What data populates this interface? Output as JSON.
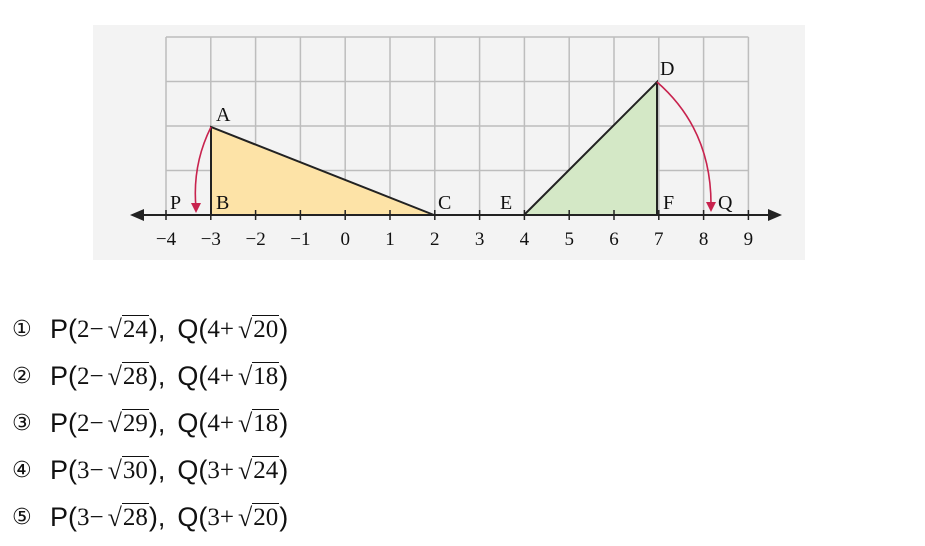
{
  "figure": {
    "ticks": [
      "−4",
      "−3",
      "−2",
      "−1",
      "0",
      "1",
      "2",
      "3",
      "4",
      "5",
      "6",
      "7",
      "8",
      "9"
    ],
    "labels": {
      "P": "P",
      "A": "A",
      "B": "B",
      "C": "C",
      "D": "D",
      "E": "E",
      "F": "F",
      "Q": "Q"
    },
    "colors": {
      "triangle_left": "#fde3a7",
      "triangle_right": "#d4e8c6",
      "arc": "#c8234e",
      "grid": "#bdbdbd",
      "panel": "#f3f3f3"
    }
  },
  "options": [
    {
      "num": "①",
      "p_prefix": "P(",
      "p_int": "2",
      "p_op": " − ",
      "p_rad": "24",
      "sep": "),",
      "q_prefix": "Q(",
      "q_int": "4",
      "q_op": " + ",
      "q_rad": "20",
      "end": ")"
    },
    {
      "num": "②",
      "p_prefix": "P(",
      "p_int": "2",
      "p_op": " − ",
      "p_rad": "28",
      "sep": "),",
      "q_prefix": "Q(",
      "q_int": "4",
      "q_op": " + ",
      "q_rad": "18",
      "end": ")"
    },
    {
      "num": "③",
      "p_prefix": "P(",
      "p_int": "2",
      "p_op": " − ",
      "p_rad": "29",
      "sep": "),",
      "q_prefix": "Q(",
      "q_int": "4",
      "q_op": " + ",
      "q_rad": "18",
      "end": ")"
    },
    {
      "num": "④",
      "p_prefix": "P(",
      "p_int": "3",
      "p_op": " − ",
      "p_rad": "30",
      "sep": "),",
      "q_prefix": "Q(",
      "q_int": "3",
      "q_op": " + ",
      "q_rad": "24",
      "end": ")"
    },
    {
      "num": "⑤",
      "p_prefix": "P(",
      "p_int": "3",
      "p_op": " − ",
      "p_rad": "28",
      "sep": "),",
      "q_prefix": "Q(",
      "q_int": "3",
      "q_op": " + ",
      "q_rad": "20",
      "end": ")"
    }
  ]
}
